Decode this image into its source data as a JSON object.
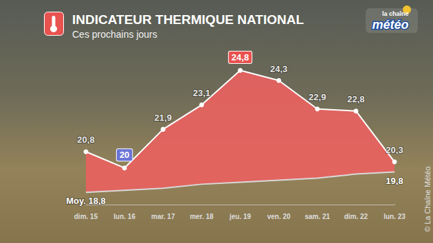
{
  "chart_data": {
    "type": "area",
    "title": "INDICATEUR THERMIQUE NATIONAL",
    "subtitle": "Ces prochains jours",
    "logo": [
      "la chaîne",
      "météo"
    ],
    "copyright": "© La Chaîne Météo",
    "categories": [
      "dim. 15",
      "lun. 16",
      "mar. 17",
      "mer. 18",
      "jeu. 19",
      "ven. 20",
      "sam. 21",
      "dim. 22",
      "lun. 23"
    ],
    "series": [
      {
        "values": [
          20.8,
          20,
          21.9,
          23.1,
          24.8,
          24.3,
          22.9,
          22.8,
          20.3
        ],
        "value_labels": [
          "20,8",
          "20",
          "21,9",
          "23,1",
          "24,8",
          "24,3",
          "22,9",
          "22,8",
          "20,3"
        ],
        "color": "#e8625f"
      },
      {
        "values": [
          18.8,
          18.9,
          19.0,
          19.2,
          19.3,
          19.4,
          19.5,
          19.7,
          19.8
        ],
        "value_labels": [
          "Moy. 18,8",
          null,
          null,
          null,
          null,
          null,
          null,
          null,
          "19,8"
        ],
        "color": "#d9d9d9"
      }
    ],
    "ylim": [
      18.2,
      26.2
    ],
    "tick_labels": "x",
    "grid": false,
    "data_labels": true
  }
}
